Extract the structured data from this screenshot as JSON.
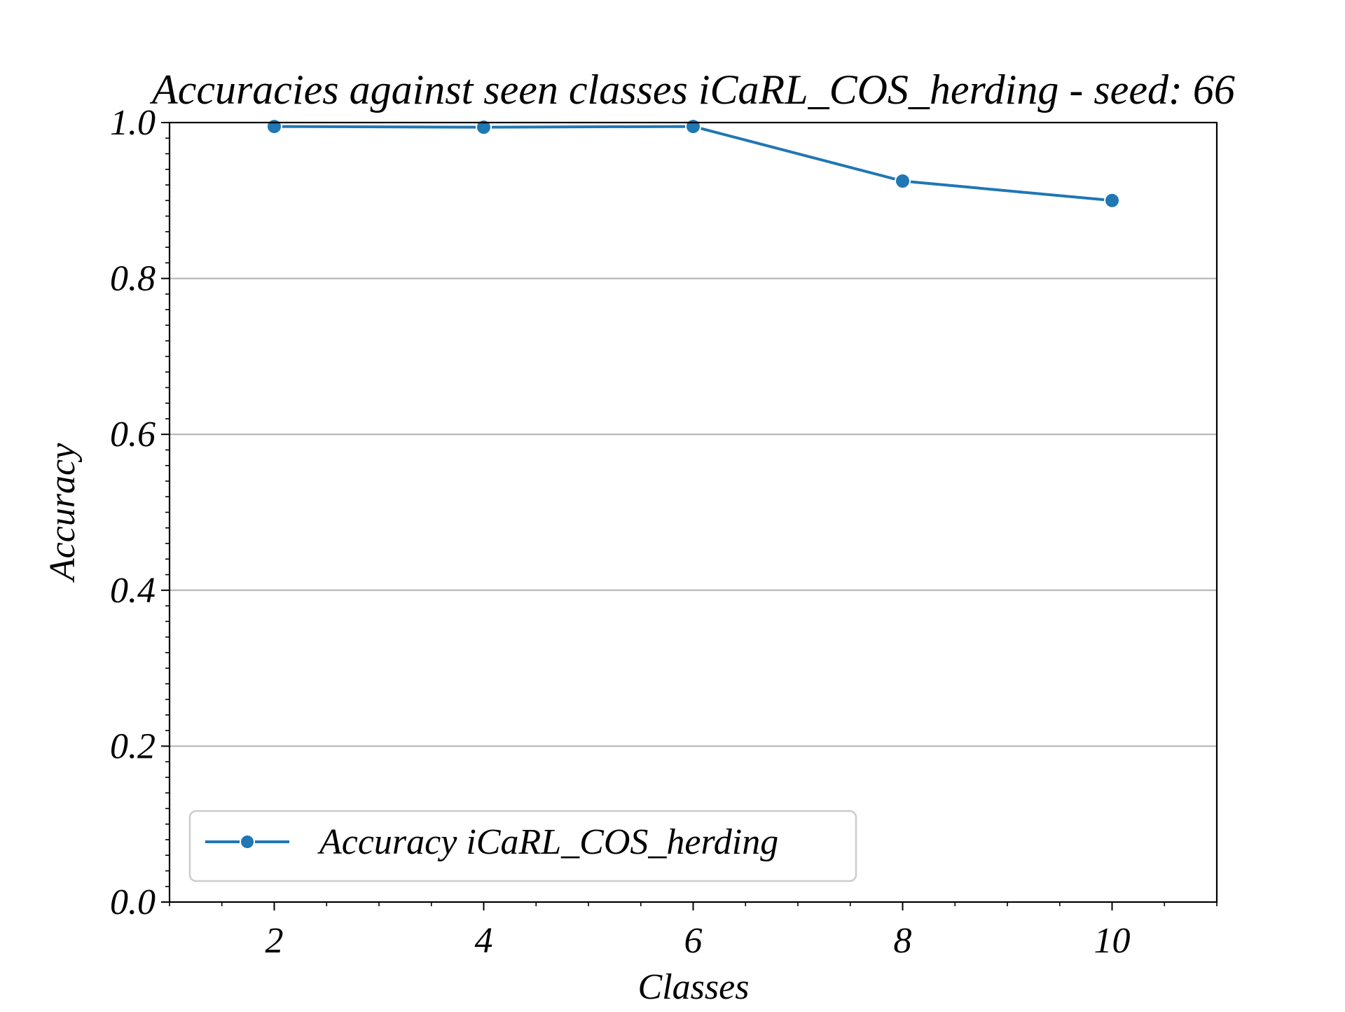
{
  "chart_data": {
    "type": "line",
    "title": "Accuracies against seen classes iCaRL_COS_herding - seed: 66",
    "xlabel": "Classes",
    "ylabel": "Accuracy",
    "x": [
      2,
      4,
      6,
      8,
      10
    ],
    "series": [
      {
        "name": "Accuracy iCaRL_COS_herding",
        "values": [
          0.995,
          0.994,
          0.995,
          0.925,
          0.9
        ]
      }
    ],
    "xlim": [
      1,
      11
    ],
    "ylim": [
      0.0,
      1.0
    ],
    "xticks": [
      2,
      4,
      6,
      8,
      10
    ],
    "yticks": [
      0.0,
      0.2,
      0.4,
      0.6,
      0.8,
      1.0
    ],
    "ytick_labels": [
      "0.0",
      "0.2",
      "0.4",
      "0.6",
      "0.8",
      "1.0"
    ],
    "grid": "y-major",
    "legend_position": "lower-left",
    "colors": {
      "series": "#1f77b4",
      "grid": "#b0b0b0",
      "axes": "#000000"
    }
  }
}
